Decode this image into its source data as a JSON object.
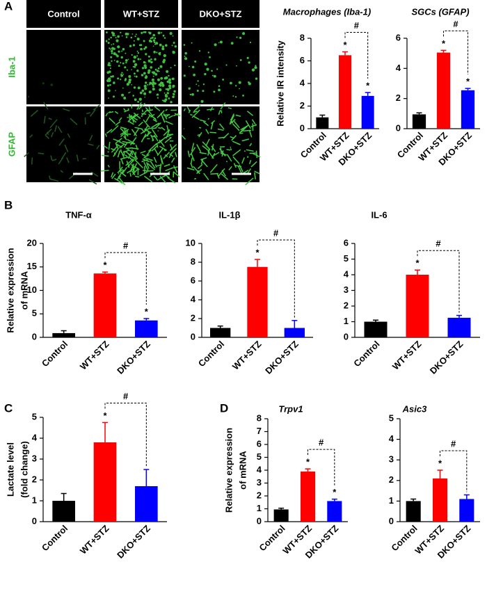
{
  "panels": [
    "A",
    "B",
    "C",
    "D"
  ],
  "image_panel": {
    "columns": [
      "Control",
      "WT+STZ",
      "DKO+STZ"
    ],
    "rows": [
      "Iba-1",
      "GFAP"
    ]
  },
  "chart_data": [
    {
      "type": "bar",
      "title": "Macrophages (Iba-1)",
      "ylabel": [
        "Relative IR intensity"
      ],
      "categories": [
        "Control",
        "WT+STZ",
        "DKO+STZ"
      ],
      "values": [
        1.0,
        6.5,
        2.9
      ],
      "errors": [
        0.2,
        0.3,
        0.3
      ],
      "colors": [
        "#000000",
        "#ff0000",
        "#0000ff"
      ],
      "ylim": [
        0,
        8
      ],
      "yticks": [
        0,
        2,
        4,
        6,
        8
      ],
      "markers": [
        null,
        "*",
        "*"
      ],
      "comparison": "#"
    },
    {
      "type": "bar",
      "title": "SGCs (GFAP)",
      "categories": [
        "Control",
        "WT+STZ",
        "DKO+STZ"
      ],
      "values": [
        0.95,
        5.05,
        2.55
      ],
      "errors": [
        0.1,
        0.15,
        0.12
      ],
      "colors": [
        "#000000",
        "#ff0000",
        "#0000ff"
      ],
      "ylim": [
        0,
        6
      ],
      "yticks": [
        0,
        2,
        4,
        6
      ],
      "markers": [
        null,
        "*",
        "*"
      ],
      "comparison": "#"
    },
    {
      "type": "bar",
      "title": "TNF-α",
      "ylabel": [
        "Relative expression",
        "of mRNA"
      ],
      "categories": [
        "Control",
        "WT+STZ",
        "DKO+STZ"
      ],
      "values": [
        0.9,
        13.6,
        3.6
      ],
      "errors": [
        0.5,
        0.3,
        0.4
      ],
      "colors": [
        "#000000",
        "#ff0000",
        "#0000ff"
      ],
      "ylim": [
        0,
        20
      ],
      "yticks": [
        0,
        5,
        10,
        15,
        20
      ],
      "markers": [
        null,
        "*",
        "*"
      ],
      "comparison": "#"
    },
    {
      "type": "bar",
      "title": "IL-1β",
      "categories": [
        "Control",
        "WT+STZ",
        "DKO+STZ"
      ],
      "values": [
        1.0,
        7.5,
        1.0
      ],
      "errors": [
        0.2,
        0.8,
        0.8
      ],
      "colors": [
        "#000000",
        "#ff0000",
        "#0000ff"
      ],
      "ylim": [
        0,
        10
      ],
      "yticks": [
        0,
        2,
        4,
        6,
        8,
        10
      ],
      "markers": [
        null,
        "*",
        null
      ],
      "comparison": "#"
    },
    {
      "type": "bar",
      "title": "IL-6",
      "categories": [
        "Control",
        "WT+STZ",
        "DKO+STZ"
      ],
      "values": [
        1.0,
        4.0,
        1.25
      ],
      "errors": [
        0.1,
        0.3,
        0.15
      ],
      "colors": [
        "#000000",
        "#ff0000",
        "#0000ff"
      ],
      "ylim": [
        0,
        6
      ],
      "yticks": [
        0,
        1,
        2,
        3,
        4,
        5,
        6
      ],
      "markers": [
        null,
        "*",
        null
      ],
      "comparison": "#"
    },
    {
      "type": "bar",
      "ylabel": [
        "Lactate level",
        "(fold change)"
      ],
      "categories": [
        "Control",
        "WT+STZ",
        "DKO+STZ"
      ],
      "values": [
        1.0,
        3.8,
        1.7
      ],
      "errors": [
        0.35,
        0.95,
        0.8
      ],
      "colors": [
        "#000000",
        "#ff0000",
        "#0000ff"
      ],
      "ylim": [
        0,
        5
      ],
      "yticks": [
        0,
        1,
        2,
        3,
        4,
        5
      ],
      "markers": [
        null,
        "*",
        null
      ],
      "comparison": "#"
    },
    {
      "type": "bar",
      "title": "Trpv1",
      "ylabel": [
        "Relative expression",
        "of mRNA"
      ],
      "categories": [
        "Control",
        "WT+STZ",
        "DKO+STZ"
      ],
      "values": [
        0.95,
        3.9,
        1.6
      ],
      "errors": [
        0.1,
        0.2,
        0.15
      ],
      "colors": [
        "#000000",
        "#ff0000",
        "#0000ff"
      ],
      "ylim": [
        0,
        8
      ],
      "yticks": [
        0,
        1,
        2,
        3,
        4,
        5,
        6,
        7,
        8
      ],
      "markers": [
        null,
        "*",
        "*"
      ],
      "comparison": "#"
    },
    {
      "type": "bar",
      "title": "Asic3",
      "categories": [
        "Control",
        "WT+STZ",
        "DKO+STZ"
      ],
      "values": [
        1.0,
        2.1,
        1.1
      ],
      "errors": [
        0.1,
        0.4,
        0.2
      ],
      "colors": [
        "#000000",
        "#ff0000",
        "#0000ff"
      ],
      "ylim": [
        0,
        5
      ],
      "yticks": [
        0,
        1,
        2,
        3,
        4,
        5
      ],
      "markers": [
        null,
        "*",
        null
      ],
      "comparison": "#"
    }
  ]
}
